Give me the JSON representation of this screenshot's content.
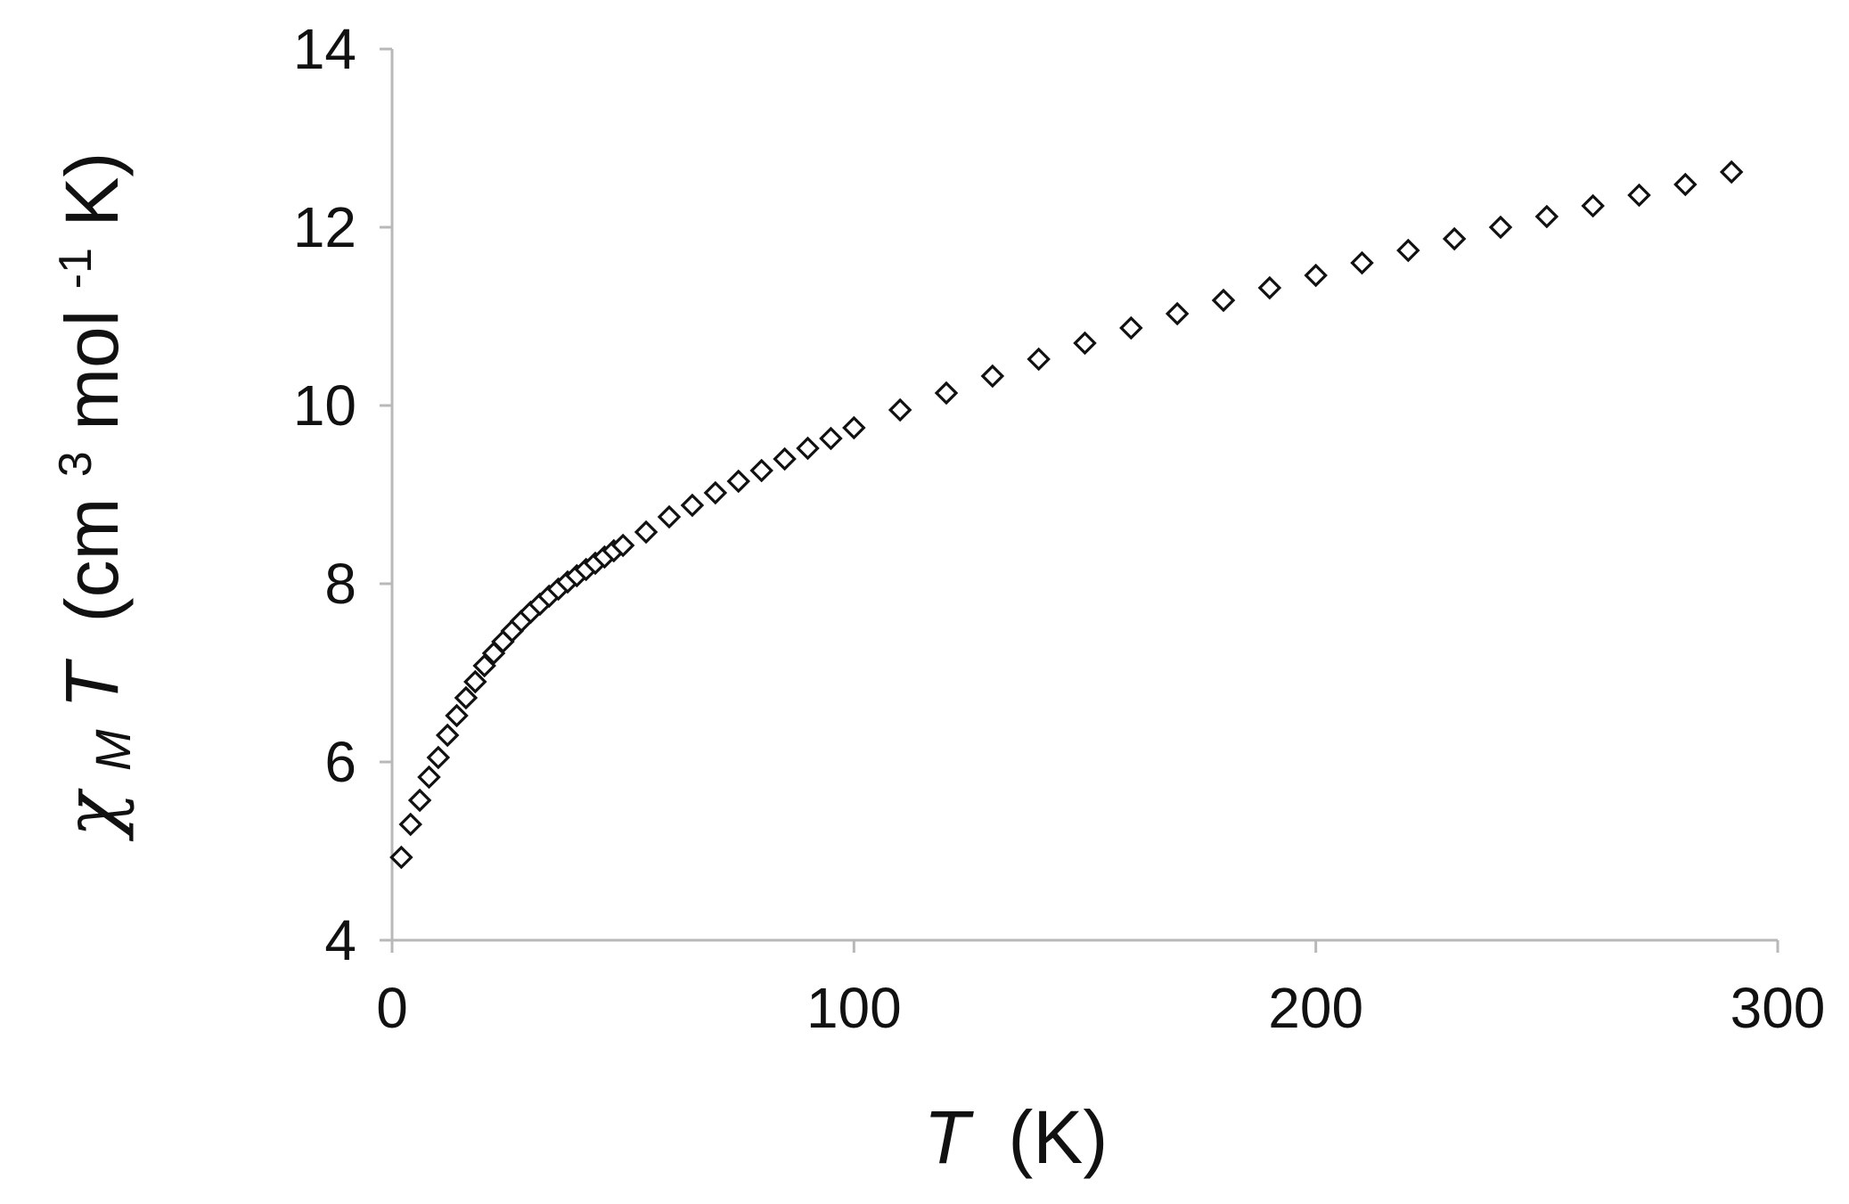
{
  "chart_data": {
    "type": "scatter",
    "title": "",
    "xlabel": {
      "main": "T",
      "unit": "(K)"
    },
    "ylabel": {
      "chi": "χ",
      "sub": "M",
      "var": "T",
      "open": "(cm",
      "sup1": "3",
      "mol": "mol",
      "sup2": "-1",
      "close": "K)"
    },
    "xlim": [
      0,
      300
    ],
    "ylim": [
      4,
      14
    ],
    "xticks": [
      0,
      100,
      200,
      300
    ],
    "yticks": [
      4,
      6,
      8,
      10,
      12,
      14
    ],
    "grid": false,
    "legend": "none",
    "marker": "open-diamond",
    "series": [
      {
        "x": [
          2,
          4,
          6,
          8,
          10,
          12,
          14,
          16,
          18,
          20,
          22,
          24,
          26,
          28,
          30,
          32,
          34,
          36,
          38,
          40,
          42,
          44,
          46,
          48,
          50,
          55,
          60,
          65,
          70,
          75,
          80,
          85,
          90,
          95,
          100,
          110,
          120,
          130,
          140,
          150,
          160,
          170,
          180,
          190,
          200,
          210,
          220,
          230,
          240,
          250,
          260,
          270,
          280,
          290
        ],
        "y": [
          4.93,
          5.3,
          5.57,
          5.83,
          6.05,
          6.3,
          6.52,
          6.72,
          6.9,
          7.08,
          7.22,
          7.35,
          7.47,
          7.58,
          7.68,
          7.77,
          7.86,
          7.94,
          8.02,
          8.09,
          8.16,
          8.23,
          8.3,
          8.37,
          8.43,
          8.58,
          8.75,
          8.88,
          9.02,
          9.15,
          9.27,
          9.4,
          9.52,
          9.63,
          9.75,
          9.95,
          10.14,
          10.33,
          10.52,
          10.7,
          10.87,
          11.03,
          11.18,
          11.32,
          11.46,
          11.6,
          11.74,
          11.87,
          12.0,
          12.12,
          12.24,
          12.36,
          12.48,
          12.62
        ]
      }
    ]
  }
}
